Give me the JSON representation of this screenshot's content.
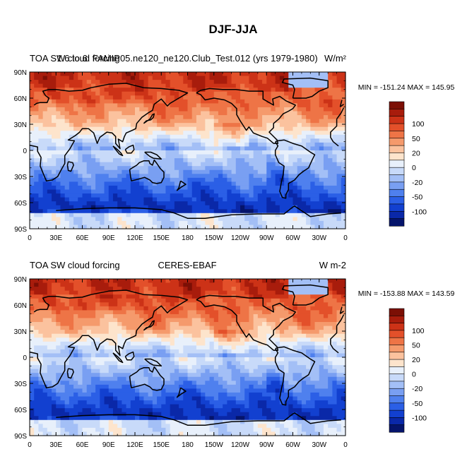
{
  "figure": {
    "title": "DJF-JJA"
  },
  "colors": {
    "levels": [
      "#05146b",
      "#0a28a8",
      "#1240d0",
      "#2b5fe6",
      "#4f80ee",
      "#799ff2",
      "#a3bff6",
      "#c8daf9",
      "#e8f0fb",
      "#fde4cc",
      "#fbc29e",
      "#f59a6c",
      "#ee7446",
      "#e3502a",
      "#cc3217",
      "#a81c0c",
      "#7c0f05"
    ],
    "landline": "#000000"
  },
  "chart_data": [
    {
      "type": "heatmap",
      "id": "model",
      "left_title": "TOA SW cloud forcing",
      "center_title": "1.6 to 6. FAMIP05.ne120_ne120.Club_Test.012 (yrs 1979-1980)",
      "units": "W/m²",
      "stats": "MIN = -151.24 MAX = 145.95",
      "min": -151.24,
      "max": 145.95,
      "xlim": [
        0,
        360
      ],
      "ylim": [
        -90,
        90
      ],
      "x_ticks": [
        "0",
        "30E",
        "60E",
        "90E",
        "120E",
        "150E",
        "180",
        "150W",
        "120W",
        "90W",
        "60W",
        "30W",
        "0"
      ],
      "y_ticks": [
        "90N",
        "60N",
        "30N",
        "0",
        "30S",
        "60S",
        "90S"
      ],
      "colorbar_labels": [
        "100",
        "50",
        "20",
        "0",
        "-20",
        "-50",
        "-100"
      ],
      "variant": 0
    },
    {
      "type": "heatmap",
      "id": "obs",
      "left_title": "TOA SW cloud forcing",
      "center_title": "CERES-EBAF",
      "units": "W m-2",
      "stats": "MIN = -153.88 MAX = 143.59",
      "min": -153.88,
      "max": 143.59,
      "xlim": [
        0,
        360
      ],
      "ylim": [
        -90,
        90
      ],
      "x_ticks": [
        "0",
        "30E",
        "60E",
        "90E",
        "120E",
        "150E",
        "180",
        "150W",
        "120W",
        "90W",
        "60W",
        "30W",
        "0"
      ],
      "y_ticks": [
        "90N",
        "60N",
        "30N",
        "0",
        "30S",
        "60S",
        "90S"
      ],
      "colorbar_labels": [
        "100",
        "50",
        "20",
        "0",
        "-20",
        "-50",
        "-100"
      ],
      "variant": 1
    }
  ]
}
